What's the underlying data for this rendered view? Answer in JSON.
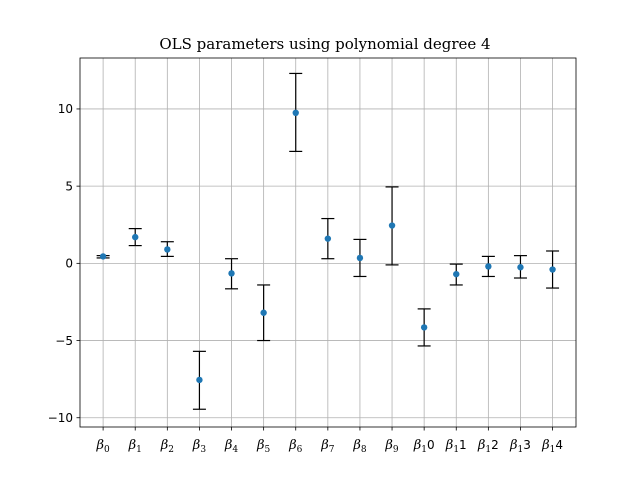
{
  "chart_data": {
    "type": "scatter",
    "title": "OLS parameters using polynomial degree 4",
    "xlabel": "",
    "ylabel": "",
    "ylim": [
      -10.6,
      13.3
    ],
    "yticks": [
      -10,
      -5,
      0,
      5,
      10
    ],
    "ytick_labels": [
      "−10",
      "−5",
      "0",
      "5",
      "10"
    ],
    "grid": true,
    "categories": [
      {
        "base": "β",
        "sub": "0",
        "suffix": ""
      },
      {
        "base": "β",
        "sub": "1",
        "suffix": ""
      },
      {
        "base": "β",
        "sub": "2",
        "suffix": ""
      },
      {
        "base": "β",
        "sub": "3",
        "suffix": ""
      },
      {
        "base": "β",
        "sub": "4",
        "suffix": ""
      },
      {
        "base": "β",
        "sub": "5",
        "suffix": ""
      },
      {
        "base": "β",
        "sub": "6",
        "suffix": ""
      },
      {
        "base": "β",
        "sub": "7",
        "suffix": ""
      },
      {
        "base": "β",
        "sub": "8",
        "suffix": ""
      },
      {
        "base": "β",
        "sub": "9",
        "suffix": ""
      },
      {
        "base": "β",
        "sub": "1",
        "suffix": "0"
      },
      {
        "base": "β",
        "sub": "1",
        "suffix": "1"
      },
      {
        "base": "β",
        "sub": "1",
        "suffix": "2"
      },
      {
        "base": "β",
        "sub": "1",
        "suffix": "3"
      },
      {
        "base": "β",
        "sub": "1",
        "suffix": "4"
      }
    ],
    "series": [
      {
        "name": "OLS parameters",
        "color": "#1f77b4",
        "values": [
          0.45,
          1.7,
          0.9,
          -7.55,
          -0.65,
          -3.2,
          9.75,
          1.6,
          0.35,
          2.45,
          -4.15,
          -0.7,
          -0.2,
          -0.25,
          -0.4
        ],
        "error_lower": [
          0.35,
          1.15,
          0.45,
          -9.45,
          -1.65,
          -5.0,
          7.25,
          0.3,
          -0.85,
          -0.1,
          -5.35,
          -1.4,
          -0.85,
          -0.95,
          -1.6
        ],
        "error_upper": [
          0.5,
          2.25,
          1.4,
          -5.7,
          0.3,
          -1.4,
          12.3,
          2.9,
          1.55,
          4.95,
          -2.95,
          -0.05,
          0.45,
          0.5,
          0.8
        ]
      }
    ]
  }
}
